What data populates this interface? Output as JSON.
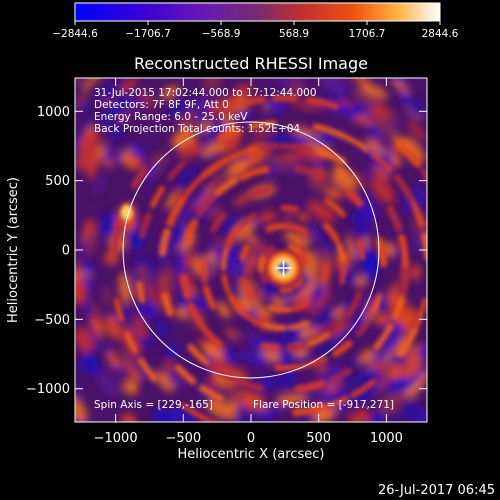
{
  "chart_data": {
    "type": "heatmap",
    "title": "Reconstructed RHESSI Image",
    "xlabel": "Heliocentric X (arcsec)",
    "ylabel": "Heliocentric Y (arcsec)",
    "xlim": [
      -1300,
      1300
    ],
    "ylim": [
      -1240,
      1240
    ],
    "x_ticks": [
      -1000,
      -500,
      0,
      500,
      1000
    ],
    "y_ticks": [
      -1000,
      -500,
      0,
      500,
      1000
    ],
    "x_tick_labels": [
      "−1000",
      "−500",
      "0",
      "500",
      "1000"
    ],
    "y_tick_labels": [
      "−1000",
      "−500",
      "0",
      "500",
      "1000"
    ],
    "colorbar": {
      "range": [
        -2844.6,
        2844.6
      ],
      "tick_values": [
        -2844.6,
        -1706.7,
        -568.9,
        568.9,
        1706.7,
        2844.6
      ],
      "tick_labels": [
        "−2844.6",
        "−1706.7",
        "−568.9",
        "568.9",
        "1706.7",
        "2844.6"
      ],
      "colors": [
        "#0000ff",
        "#5b00c8",
        "#7d2a8a",
        "#b83a3a",
        "#e84020",
        "#ff9020",
        "#ffe080",
        "#ffffff"
      ]
    },
    "info_lines": [
      "31-Jul-2015 17:02:44.000 to 17:12:44.000",
      "Detectors: 7F 8F 9F, Att 0",
      "Energy Range: 6.0 - 25.0 keV",
      "Back Projection    Total counts: 1.52E+04"
    ],
    "spin_axis_text": "Spin Axis = [229,-165]",
    "flare_position_text": "Flare Position = [-917,271]",
    "solar_disk_radius_arcsec": 945,
    "source_center": [
      240,
      -130
    ],
    "footer_timestamp": "26-Jul-2017 06:45"
  }
}
